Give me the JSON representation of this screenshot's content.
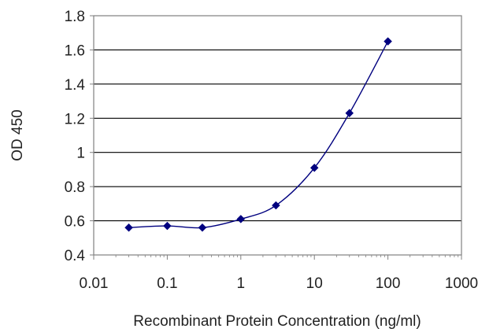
{
  "chart_data": {
    "type": "line",
    "title": "",
    "xlabel": "Recombinant Protein Concentration (ng/ml)",
    "ylabel": "OD 450",
    "x_scale": "log",
    "xlim": [
      0.01,
      1000
    ],
    "ylim": [
      0.4,
      1.8
    ],
    "x_ticks": [
      0.01,
      0.1,
      1,
      10,
      100,
      1000
    ],
    "x_tick_labels": [
      "0.01",
      "0.1",
      "1",
      "10",
      "100",
      "1000"
    ],
    "y_ticks": [
      0.4,
      0.6,
      0.8,
      1.0,
      1.2,
      1.4,
      1.6,
      1.8
    ],
    "y_tick_labels": [
      "0.4",
      "0.6",
      "0.8",
      "1",
      "1.2",
      "1.4",
      "1.6",
      "1.8"
    ],
    "grid": "horizontal",
    "legend": "none",
    "series": [
      {
        "x": [
          0.03,
          0.1,
          0.3,
          1,
          3,
          10,
          30,
          100
        ],
        "y": [
          0.56,
          0.57,
          0.56,
          0.61,
          0.69,
          0.91,
          1.23,
          1.65
        ],
        "color": "#00007f",
        "marker": "diamond"
      }
    ],
    "colors": {
      "series": "#00007f",
      "grid": "#000000",
      "frame": "#808080"
    }
  }
}
